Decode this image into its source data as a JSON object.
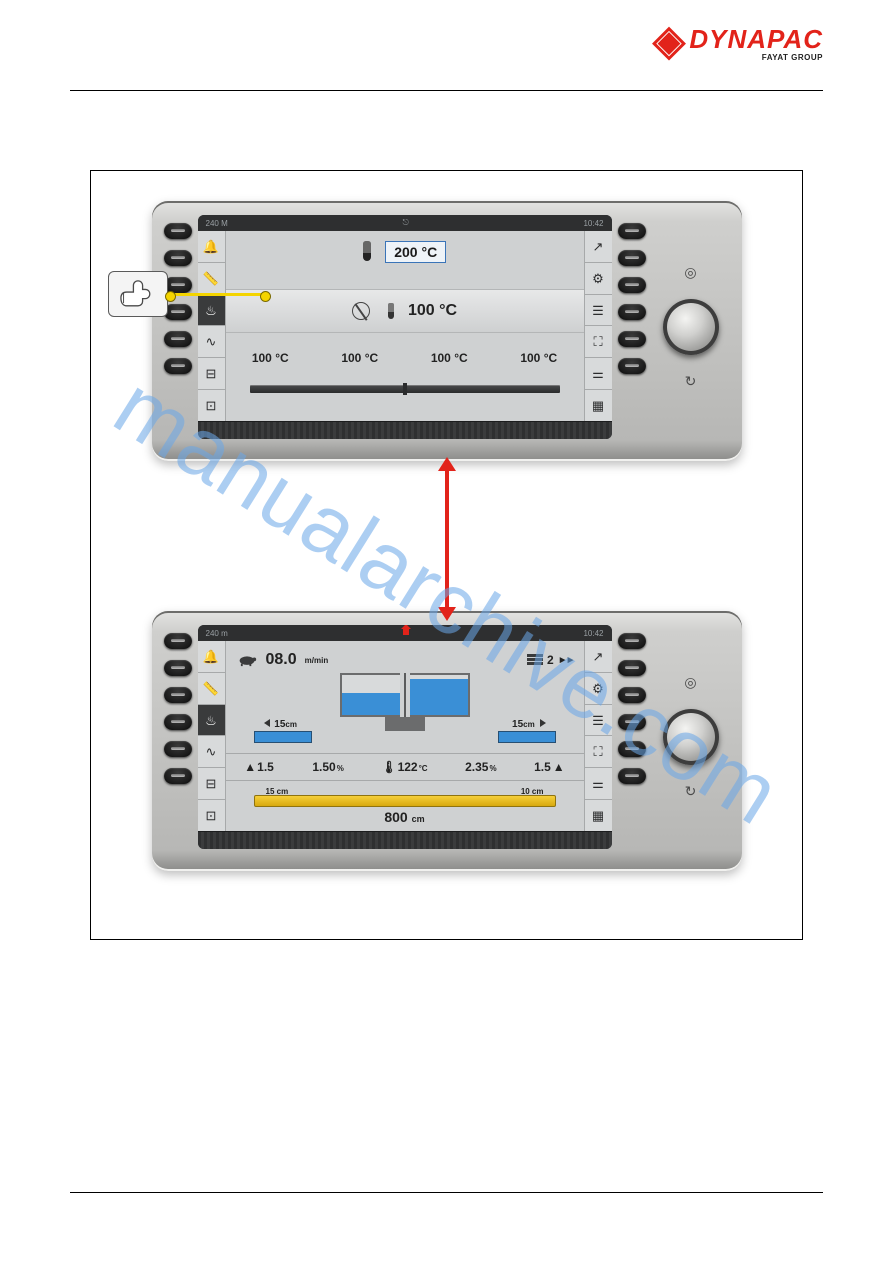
{
  "brand": {
    "name": "DYNAPAC",
    "sub": "FAYAT GROUP",
    "color": "#e2231a"
  },
  "watermark": "manualarchive.com",
  "arrow": {
    "color": "#e2231a"
  },
  "hw_button_rows": 6,
  "soft_icons_left": [
    {
      "name": "bell-icon"
    },
    {
      "name": "ruler-icon"
    },
    {
      "name": "heat-icon",
      "active_top": true,
      "active_bottom": true
    },
    {
      "name": "flow-icon"
    },
    {
      "name": "aux1-icon"
    },
    {
      "name": "aux2-icon"
    }
  ],
  "soft_icons_right": [
    {
      "name": "arrow-up-right-icon"
    },
    {
      "name": "gears-icon"
    },
    {
      "name": "layers-icon"
    },
    {
      "name": "tripod-icon"
    },
    {
      "name": "sliders-icon"
    },
    {
      "name": "grid-icon"
    }
  ],
  "device_top": {
    "statusbar": {
      "left": "240 M",
      "center_icon": "link",
      "right": "10:42"
    },
    "setpoint": {
      "value": "200",
      "unit": "°C",
      "box_border": "#3a74b8",
      "box_bg": "#eef3f8"
    },
    "average": {
      "value": "100",
      "unit": "°C"
    },
    "zones": [
      {
        "value": "100",
        "unit": "°C"
      },
      {
        "value": "100",
        "unit": "°C"
      },
      {
        "value": "100",
        "unit": "°C"
      },
      {
        "value": "100",
        "unit": "°C"
      }
    ],
    "screed_color": "#3a3b3c"
  },
  "device_bottom": {
    "statusbar": {
      "left": "240 m",
      "center_icon": "home",
      "right": "10:42"
    },
    "speed": {
      "value": "08.0",
      "unit": "m/min"
    },
    "layer_chip": {
      "value": "2"
    },
    "ext_left": {
      "prefix": "↕",
      "value": "15",
      "unit": "cm"
    },
    "ext_right": {
      "prefix": "↕",
      "value": "15",
      "unit": "cm"
    },
    "hopper": {
      "left_fill_pct": 55,
      "right_fill_pct": 90,
      "fill_color": "#3a8fd6",
      "frame_color": "#6b6c6d",
      "bg_color": "#d8dadb"
    },
    "metrics": [
      {
        "value": "1.5",
        "unit": ""
      },
      {
        "value": "1.50",
        "unit": "%"
      },
      {
        "value": "122",
        "unit": "°C"
      },
      {
        "value": "2.35",
        "unit": "%"
      },
      {
        "value": "1.5",
        "unit": ""
      }
    ],
    "width": {
      "left_label": "15 cm",
      "right_label": "10 cm",
      "total_value": "800",
      "total_unit": "cm",
      "bar_color": "#f6cf3a"
    }
  },
  "palette": {
    "page_bg": "#ffffff",
    "device_shell_top": "#e4e4e2",
    "device_shell_bottom": "#8a8a88",
    "screen_bg": "#cfd1d2",
    "statusbar_bg": "#2e2f30",
    "softcol_bg": "#d8dadb",
    "active_cell_bg": "#3a3b3c",
    "text": "#1b1b1b"
  }
}
